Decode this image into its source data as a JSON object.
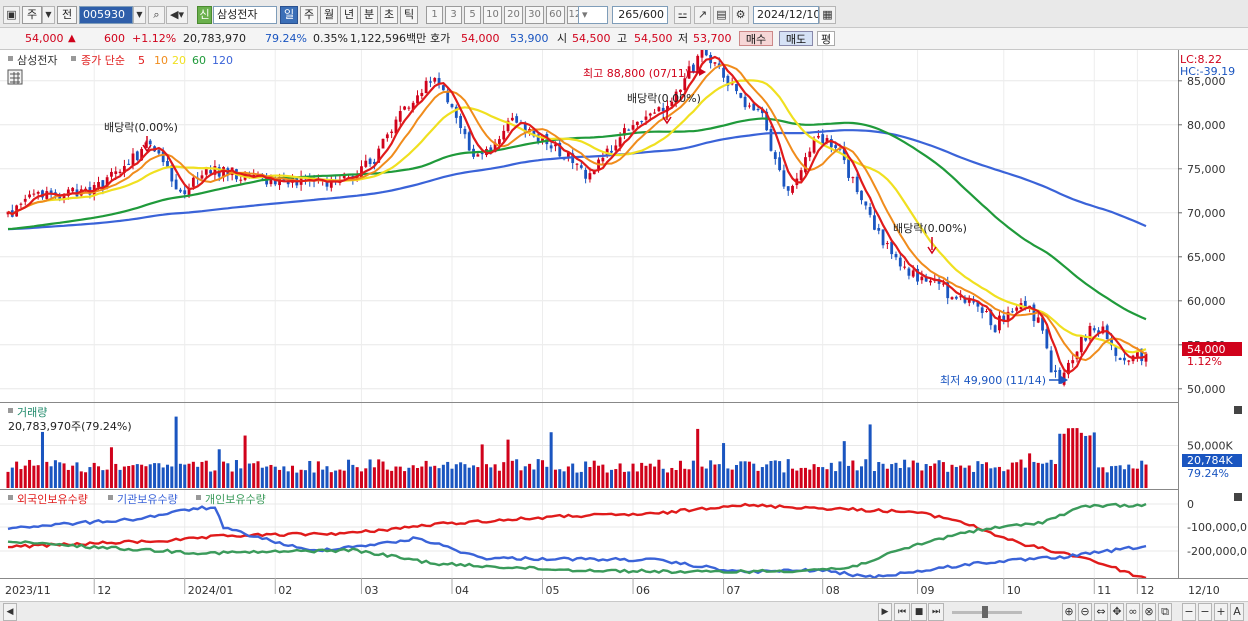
{
  "toolbar": {
    "market_label": "주",
    "prev_label": "전",
    "code": "005930",
    "credit_label": "신",
    "stock_name": "삼성전자",
    "periods": [
      "일",
      "주",
      "월",
      "년",
      "분",
      "초",
      "틱"
    ],
    "selected_period": "일",
    "period_numbers": [
      "1",
      "3",
      "5",
      "10",
      "20",
      "30",
      "60",
      "120"
    ],
    "count": "265",
    "count_total": "/600",
    "date": "2024/12/10"
  },
  "quote": {
    "price": "54,000",
    "change_arrow": "▲",
    "change": "600",
    "change_pct": "+1.12%",
    "volume": "20,783,970",
    "volume_ratio": "79.24%",
    "turnover_pct": "0.35%",
    "amount": "1,122,596백만",
    "hoga_label": "호가",
    "ask": "54,000",
    "bid": "53,900",
    "open_label": "시",
    "open": "54,500",
    "high_label": "고",
    "high": "54,500",
    "low_label": "저",
    "low": "53,700",
    "buy_label": "매수",
    "sell_label": "매도",
    "avg_label": "평"
  },
  "colors": {
    "up": "#d0021b",
    "down": "#1a55c0",
    "ma5": "#e01b1b",
    "ma10": "#f08c1c",
    "ma20": "#f0e020",
    "ma60": "#1f9a3a",
    "ma120": "#3a63d8",
    "foreign": "#e01b1b",
    "institution": "#3a63d8",
    "individual": "#3a9a5a"
  },
  "chart_data": [
    {
      "type": "candlestick",
      "legend": {
        "stock": "삼성전자",
        "ma_title": "종가 단순",
        "periods": [
          "5",
          "10",
          "20",
          "60",
          "120"
        ]
      },
      "y_ticks": [
        "85,000",
        "80,000",
        "75,000",
        "70,000",
        "65,000",
        "60,000",
        "55,000",
        "50,000"
      ],
      "ylim": [
        48500,
        88500
      ],
      "lc_label": "LC:8.22",
      "hc_label": "HC:-39.19",
      "current_price": "54,000",
      "current_pct": "1.12%",
      "annotations": {
        "high": "최고 88,800 (07/11)",
        "low": "최저 49,900 (11/14)",
        "dividends": [
          "배당락(0.00%)",
          "배당락(0.00%)",
          "배당락(0.00%)"
        ]
      },
      "anchors": [
        [
          0,
          69700
        ],
        [
          5,
          72000
        ],
        [
          13,
          72300
        ],
        [
          20,
          72500
        ],
        [
          25,
          74500
        ],
        [
          30,
          76500
        ],
        [
          33,
          77800
        ],
        [
          36,
          76000
        ],
        [
          38,
          73500
        ],
        [
          41,
          71500
        ],
        [
          44,
          74500
        ],
        [
          50,
          74800
        ],
        [
          58,
          74000
        ],
        [
          65,
          73500
        ],
        [
          70,
          73400
        ],
        [
          75,
          73200
        ],
        [
          79,
          74000
        ],
        [
          85,
          76000
        ],
        [
          88,
          79000
        ],
        [
          92,
          82000
        ],
        [
          97,
          84500
        ],
        [
          100,
          85000
        ],
        [
          105,
          79000
        ],
        [
          109,
          76300
        ],
        [
          112,
          77500
        ],
        [
          117,
          80500
        ],
        [
          121,
          79000
        ],
        [
          125,
          78000
        ],
        [
          130,
          76500
        ],
        [
          134,
          74500
        ],
        [
          138,
          76000
        ],
        [
          144,
          79800
        ],
        [
          150,
          81000
        ],
        [
          154,
          82500
        ],
        [
          158,
          86000
        ],
        [
          161,
          88000
        ],
        [
          165,
          86500
        ],
        [
          170,
          83000
        ],
        [
          175,
          81500
        ],
        [
          178,
          75500
        ],
        [
          181,
          72500
        ],
        [
          184,
          75500
        ],
        [
          188,
          78500
        ],
        [
          192,
          78000
        ],
        [
          196,
          73500
        ],
        [
          200,
          69500
        ],
        [
          204,
          66000
        ],
        [
          208,
          63500
        ],
        [
          212,
          62500
        ],
        [
          216,
          62000
        ],
        [
          220,
          60000
        ],
        [
          225,
          59500
        ],
        [
          229,
          57000
        ],
        [
          232,
          59000
        ],
        [
          236,
          59500
        ],
        [
          240,
          56800
        ],
        [
          242,
          52000
        ],
        [
          244,
          50500
        ],
        [
          247,
          53500
        ],
        [
          251,
          57000
        ],
        [
          254,
          56800
        ],
        [
          258,
          53000
        ],
        [
          264,
          54000
        ]
      ],
      "x_ticks": [
        "2023/11",
        "12",
        "2024/01",
        "02",
        "03",
        "04",
        "05",
        "06",
        "07",
        "08",
        "09",
        "10",
        "11",
        "12"
      ],
      "x_right": "12/10"
    },
    {
      "type": "bar",
      "title": "거래량",
      "label": "20,783,970주(79.24%)",
      "y_tick": "50,000K",
      "current_value": "20,784K",
      "current_pct": "79.24%"
    },
    {
      "type": "line",
      "series": [
        {
          "name": "외국인보유수량"
        },
        {
          "name": "기관보유수량"
        },
        {
          "name": "개인보유수량"
        }
      ],
      "y_ticks": [
        "0",
        "-100,000,0",
        "-200,000,0"
      ]
    }
  ]
}
